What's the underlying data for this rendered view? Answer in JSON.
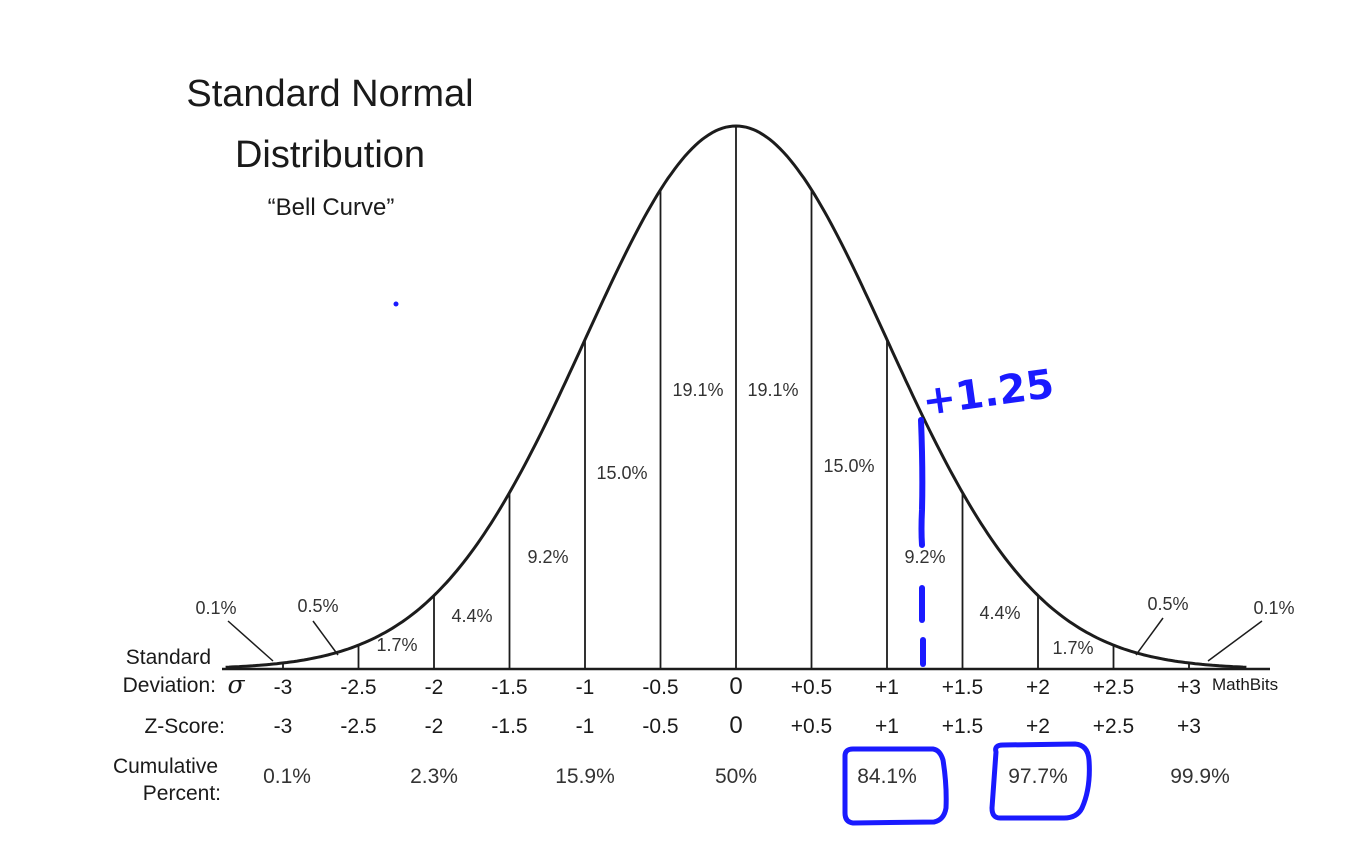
{
  "title_line1": "Standard Normal",
  "title_line2": "Distribution",
  "subtitle": "“Bell Curve”",
  "region_labels": [
    "0.1%",
    "0.5%",
    "1.7%",
    "4.4%",
    "9.2%",
    "15.0%",
    "19.1%",
    "19.1%",
    "15.0%",
    "9.2%",
    "4.4%",
    "1.7%",
    "0.5%",
    "0.1%"
  ],
  "row_labels": {
    "sd_line1": "Standard",
    "sd_line2": "Deviation:",
    "sigma": "σ",
    "z_score": "Z-Score:",
    "cum_line1": "Cumulative",
    "cum_line2": "Percent:"
  },
  "sd_ticks": [
    "-3",
    "-2.5",
    "-2",
    "-1.5",
    "-1",
    "-0.5",
    "0",
    "+0.5",
    "+1",
    "+1.5",
    "+2",
    "+2.5",
    "+3"
  ],
  "z_ticks": [
    "-3",
    "-2.5",
    "-2",
    "-1.5",
    "-1",
    "-0.5",
    "0",
    "+0.5",
    "+1",
    "+1.5",
    "+2",
    "+2.5",
    "+3"
  ],
  "cumulative": [
    {
      "z": -3,
      "label": "0.1%"
    },
    {
      "z": -2,
      "label": "2.3%"
    },
    {
      "z": -1,
      "label": "15.9%"
    },
    {
      "z": 0,
      "label": "50%"
    },
    {
      "z": 1,
      "label": "84.1%",
      "highlighted": true
    },
    {
      "z": 2,
      "label": "97.7%",
      "highlighted": true
    },
    {
      "z": 3,
      "label": "99.9%"
    }
  ],
  "credit": "MathBits",
  "annotation": {
    "text": "+1.25",
    "z": 1.25,
    "color": "#1a1aff"
  },
  "chart_data": {
    "type": "area",
    "distribution": "standard normal",
    "x_range": [
      -3.5,
      3.5
    ],
    "boundaries_sd": [
      -3,
      -2.5,
      -2,
      -1.5,
      -1,
      -0.5,
      0,
      0.5,
      1,
      1.5,
      2,
      2.5,
      3
    ],
    "region_percents": [
      0.1,
      0.5,
      1.7,
      4.4,
      9.2,
      15.0,
      19.1,
      19.1,
      15.0,
      9.2,
      4.4,
      1.7,
      0.5,
      0.1
    ],
    "cumulative_percents": [
      {
        "z": -3,
        "percent": 0.1
      },
      {
        "z": -2,
        "percent": 2.3
      },
      {
        "z": -1,
        "percent": 15.9
      },
      {
        "z": 0,
        "percent": 50
      },
      {
        "z": 1,
        "percent": 84.1
      },
      {
        "z": 2,
        "percent": 97.7
      },
      {
        "z": 3,
        "percent": 99.9
      }
    ],
    "marked_z": 1.25
  }
}
